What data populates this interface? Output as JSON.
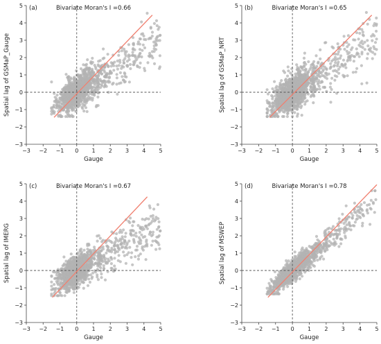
{
  "style": {
    "point_color": "#b3b3b3",
    "fit_color": "#f08070",
    "axis_color": "#444444",
    "refline_color": "#555555"
  },
  "chart_data": [
    {
      "type": "scatter",
      "panel_label": "(a)",
      "title": "Bivariate Moran's I =0.66",
      "xlabel": "Gauge",
      "ylabel": "Spatial lag of GSMaP_Gauge",
      "xlim": [
        -3,
        5
      ],
      "ylim": [
        -3,
        5
      ],
      "xticks": [
        -3,
        -2,
        -1,
        0,
        1,
        2,
        3,
        4,
        5
      ],
      "yticks": [
        -3,
        -2,
        -1,
        0,
        1,
        2,
        3,
        4,
        5
      ],
      "reference_lines": {
        "x": 0,
        "y": 0,
        "style": "dashed"
      },
      "fit_line": {
        "x": [
          -1.35,
          4.5
        ],
        "y": [
          -1.45,
          4.45
        ]
      },
      "cloud": {
        "seed": 11,
        "n": 1300,
        "x_center": 0.0,
        "x_spread": 0.6,
        "x_tail": [
          1.2,
          5.0
        ],
        "slope": 0.62,
        "noise": 0.45,
        "y_min": -1.4,
        "y_max": 4.6
      }
    },
    {
      "type": "scatter",
      "panel_label": "(b)",
      "title": "Bivariate Moran's I =0.65",
      "xlabel": "Gauge",
      "ylabel": "Spatial lag of GSMaP_NRT",
      "xlim": [
        -3,
        5
      ],
      "ylim": [
        -3,
        5
      ],
      "xticks": [
        -3,
        -2,
        -1,
        0,
        1,
        2,
        3,
        4,
        5
      ],
      "yticks": [
        -3,
        -2,
        -1,
        0,
        1,
        2,
        3,
        4,
        5
      ],
      "reference_lines": {
        "x": 0,
        "y": 0,
        "style": "dashed"
      },
      "fit_line": {
        "x": [
          -1.35,
          4.7
        ],
        "y": [
          -1.45,
          4.45
        ]
      },
      "cloud": {
        "seed": 23,
        "n": 1300,
        "x_center": 0.0,
        "x_spread": 0.6,
        "x_tail": [
          1.2,
          5.0
        ],
        "slope": 0.62,
        "noise": 0.5,
        "y_min": -1.4,
        "y_max": 4.6
      }
    },
    {
      "type": "scatter",
      "panel_label": "(c)",
      "title": "Bivariate Moran's I =0.67",
      "xlabel": "Gauge",
      "ylabel": "Spatial lag of IMERG",
      "xlim": [
        -3,
        5
      ],
      "ylim": [
        -3,
        5
      ],
      "xticks": [
        -3,
        -2,
        -1,
        0,
        1,
        2,
        3,
        4,
        5
      ],
      "yticks": [
        -3,
        -2,
        -1,
        0,
        1,
        2,
        3,
        4,
        5
      ],
      "reference_lines": {
        "x": 0,
        "y": 0,
        "style": "dashed"
      },
      "fit_line": {
        "x": [
          -1.45,
          4.2
        ],
        "y": [
          -1.55,
          4.25
        ]
      },
      "cloud": {
        "seed": 37,
        "n": 1300,
        "x_center": -0.1,
        "x_spread": 0.55,
        "x_tail": [
          1.2,
          5.0
        ],
        "slope": 0.55,
        "noise": 0.42,
        "y_min": -1.45,
        "y_max": 3.8
      }
    },
    {
      "type": "scatter",
      "panel_label": "(d)",
      "title": "Bivariate Moran's I =0.78",
      "xlabel": "Gauge",
      "ylabel": "Spatial lag of MSWEP",
      "xlim": [
        -3,
        5
      ],
      "ylim": [
        -3,
        5
      ],
      "xticks": [
        -3,
        -2,
        -1,
        0,
        1,
        2,
        3,
        4,
        5
      ],
      "yticks": [
        -3,
        -2,
        -1,
        0,
        1,
        2,
        3,
        4,
        5
      ],
      "reference_lines": {
        "x": 0,
        "y": 0,
        "style": "dashed"
      },
      "fit_line": {
        "x": [
          -1.45,
          5.0
        ],
        "y": [
          -1.55,
          4.95
        ]
      },
      "cloud": {
        "seed": 53,
        "n": 1300,
        "x_center": 0.0,
        "x_spread": 0.6,
        "x_tail": [
          1.2,
          5.0
        ],
        "slope": 0.82,
        "noise": 0.28,
        "y_min": -1.35,
        "y_max": 4.6
      }
    }
  ]
}
